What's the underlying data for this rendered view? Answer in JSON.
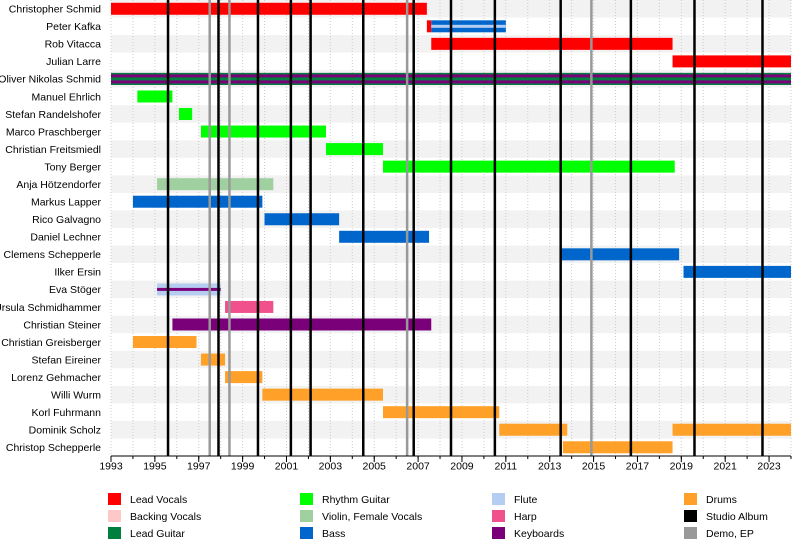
{
  "chart_data": {
    "type": "timeline",
    "title": "",
    "xlim": [
      1993,
      2024.0
    ],
    "x_ticks": [
      1993,
      1995,
      1997,
      1999,
      2001,
      2003,
      2005,
      2007,
      2009,
      2011,
      2013,
      2015,
      2017,
      2019,
      2021,
      2023
    ],
    "grid": true,
    "colors": {
      "Lead Vocals": "#ff0000",
      "Backing Vocals": "#ffc8c8",
      "Lead Guitar": "#007f3f",
      "Rhythm Guitar": "#00ff00",
      "Violin, Female Vocals": "#a0d0a0",
      "Bass": "#0066cc",
      "Flute": "#b4cdf0",
      "Harp": "#f0508c",
      "Keyboards": "#7a007a",
      "Drums": "#ffa028",
      "Studio Album": "#000000",
      "Demo, EP": "#999999"
    },
    "members": [
      {
        "name": "Christopher Schmid",
        "bars": [
          {
            "role": "Lead Vocals",
            "start": 1993.0,
            "end": 2007.4
          }
        ]
      },
      {
        "name": "Peter Kafka",
        "bars": [
          {
            "role": "Lead Vocals",
            "start": 2007.4,
            "end": 2007.6
          },
          {
            "role": "Bass",
            "start": 2007.6,
            "end": 2011.0,
            "inner": "Flute"
          }
        ]
      },
      {
        "name": "Rob Vitacca",
        "bars": [
          {
            "role": "Lead Vocals",
            "start": 2007.6,
            "end": 2018.6
          }
        ]
      },
      {
        "name": "Julian Larre",
        "bars": [
          {
            "role": "Lead Vocals",
            "start": 2018.6,
            "end": 2024.0
          }
        ]
      },
      {
        "name": "Oliver Nikolas Schmid",
        "bars": [
          {
            "role": "Keyboards",
            "start": 1993.0,
            "end": 2024.0,
            "inner": "Lead Guitar"
          }
        ]
      },
      {
        "name": "Manuel Ehrlich",
        "bars": [
          {
            "role": "Rhythm Guitar",
            "start": 1994.2,
            "end": 1995.8
          }
        ]
      },
      {
        "name": "Stefan Randelshofer",
        "bars": [
          {
            "role": "Rhythm Guitar",
            "start": 1996.1,
            "end": 1996.7
          }
        ]
      },
      {
        "name": "Marco Praschberger",
        "bars": [
          {
            "role": "Rhythm Guitar",
            "start": 1997.1,
            "end": 2002.8
          }
        ]
      },
      {
        "name": "Christian Freitsmiedl",
        "bars": [
          {
            "role": "Rhythm Guitar",
            "start": 2002.8,
            "end": 2005.4
          }
        ]
      },
      {
        "name": "Tony Berger",
        "bars": [
          {
            "role": "Rhythm Guitar",
            "start": 2005.4,
            "end": 2018.7
          }
        ]
      },
      {
        "name": "Anja Hötzendorfer",
        "bars": [
          {
            "role": "Violin, Female Vocals",
            "start": 1995.1,
            "end": 2000.4
          }
        ]
      },
      {
        "name": "Markus Lapper",
        "bars": [
          {
            "role": "Bass",
            "start": 1994.0,
            "end": 1999.9
          }
        ]
      },
      {
        "name": "Rico Galvagno",
        "bars": [
          {
            "role": "Bass",
            "start": 2000.0,
            "end": 2003.4
          }
        ]
      },
      {
        "name": "Daniel Lechner",
        "bars": [
          {
            "role": "Bass",
            "start": 2003.4,
            "end": 2007.5
          }
        ]
      },
      {
        "name": "Clemens Schepperle",
        "bars": [
          {
            "role": "Bass",
            "start": 2013.5,
            "end": 2018.9
          }
        ]
      },
      {
        "name": "Ilker Ersin",
        "bars": [
          {
            "role": "Bass",
            "start": 2019.1,
            "end": 2024.0
          }
        ]
      },
      {
        "name": "Eva Stöger",
        "bars": [
          {
            "role": "Flute",
            "start": 1995.1,
            "end": 1998.0,
            "inner": "Keyboards"
          }
        ]
      },
      {
        "name": "Ursula Schmidhammer",
        "bars": [
          {
            "role": "Harp",
            "start": 1998.2,
            "end": 2000.4
          }
        ]
      },
      {
        "name": "Christian Steiner",
        "bars": [
          {
            "role": "Keyboards",
            "start": 1995.8,
            "end": 2007.6
          }
        ]
      },
      {
        "name": "Christian Greisberger",
        "bars": [
          {
            "role": "Drums",
            "start": 1994.0,
            "end": 1996.9
          }
        ]
      },
      {
        "name": "Stefan Eireiner",
        "bars": [
          {
            "role": "Drums",
            "start": 1997.1,
            "end": 1998.2
          }
        ]
      },
      {
        "name": "Lorenz Gehmacher",
        "bars": [
          {
            "role": "Drums",
            "start": 1998.2,
            "end": 1999.9
          }
        ]
      },
      {
        "name": "Willi Wurm",
        "bars": [
          {
            "role": "Drums",
            "start": 1999.9,
            "end": 2005.4
          }
        ]
      },
      {
        "name": "Korl Fuhrmann",
        "bars": [
          {
            "role": "Drums",
            "start": 2005.4,
            "end": 2010.7
          }
        ]
      },
      {
        "name": "Dominik Scholz",
        "bars": [
          {
            "role": "Drums",
            "start": 2010.7,
            "end": 2013.8
          },
          {
            "role": "Drums",
            "start": 2018.6,
            "end": 2024.0
          }
        ]
      },
      {
        "name": "Christop Schepperle",
        "bars": [
          {
            "role": "Drums",
            "start": 2013.6,
            "end": 2018.6
          }
        ]
      }
    ],
    "studio_albums": [
      1995.6,
      1997.9,
      1999.7,
      2001.2,
      2002.1,
      2004.5,
      2006.8,
      2008.5,
      2010.5,
      2013.5,
      2016.7,
      2019.6,
      2022.7
    ],
    "demos_eps": [
      1997.5,
      1998.4,
      2006.5,
      2014.9
    ],
    "legend": [
      [
        "Lead Vocals",
        "Rhythm Guitar",
        "Flute",
        "Drums"
      ],
      [
        "Backing Vocals",
        "Violin, Female Vocals",
        "Harp",
        "Studio Album"
      ],
      [
        "Lead Guitar",
        "Bass",
        "Keyboards",
        "Demo, EP"
      ]
    ]
  }
}
